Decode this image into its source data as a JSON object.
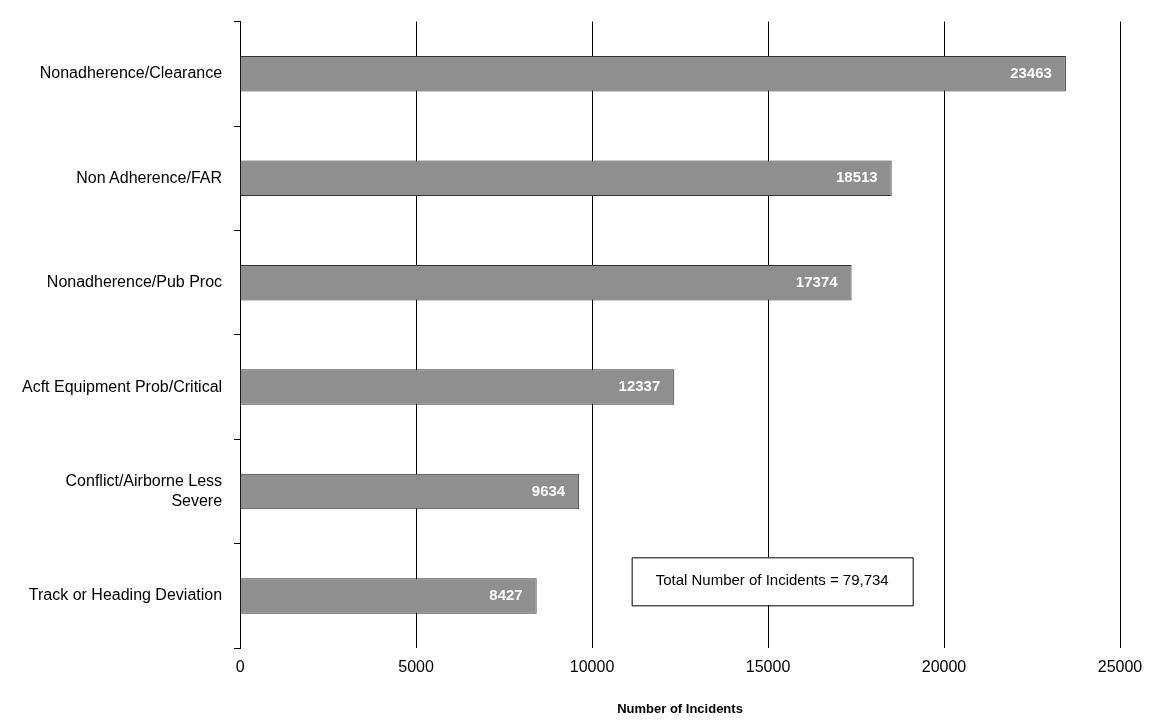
{
  "chart_data": {
    "type": "bar",
    "orientation": "horizontal",
    "categories": [
      "Nonadherence/Clearance",
      "Non Adherence/FAR",
      "Nonadherence/Pub Proc",
      "Acft Equipment Prob/Critical",
      "Conflict/Airborne Less Severe",
      "Track or Heading Deviation"
    ],
    "values": [
      23463,
      18513,
      17374,
      12337,
      9634,
      8427
    ],
    "color": "#8f8f8f",
    "xlabel": "Number of Incidents",
    "xlim": [
      0,
      25000
    ],
    "xticks": [
      0,
      5000,
      10000,
      15000,
      20000,
      25000
    ],
    "grid": "x",
    "data_labels": true,
    "annotations": [
      "Total Number of Incidents = 79,734"
    ]
  }
}
